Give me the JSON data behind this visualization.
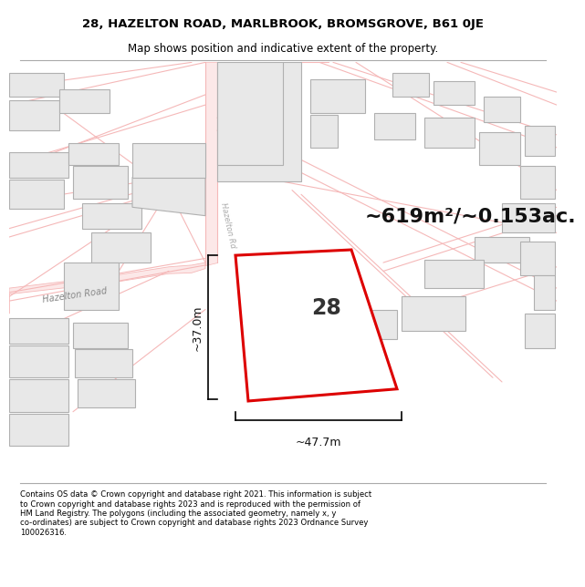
{
  "title_line1": "28, HAZELTON ROAD, MARLBROOK, BROMSGROVE, B61 0JE",
  "title_line2": "Map shows position and indicative extent of the property.",
  "area_text": "~619m²/~0.153ac.",
  "property_number": "28",
  "dim_width": "~47.7m",
  "dim_height": "~37.0m",
  "road_label1": "Hazelton Road",
  "road_label2": "Hazelton Rd",
  "copyright_text": "Contains OS data © Crown copyright and database right 2021. This information is subject\nto Crown copyright and database rights 2023 and is reproduced with the permission of\nHM Land Registry. The polygons (including the associated geometry, namely x, y\nco-ordinates) are subject to Crown copyright and database rights 2023 Ordnance Survey\n100026316.",
  "bg_color": "#ffffff",
  "building_fill": "#e8e8e8",
  "building_edge": "#b0b0b0",
  "road_color": "#f5b8b8",
  "property_fill": "#ffffff",
  "property_edge": "#dd0000",
  "title_fontsize": 9.5,
  "subtitle_fontsize": 8.5,
  "area_fontsize": 16,
  "dim_fontsize": 9,
  "label_fontsize": 7
}
